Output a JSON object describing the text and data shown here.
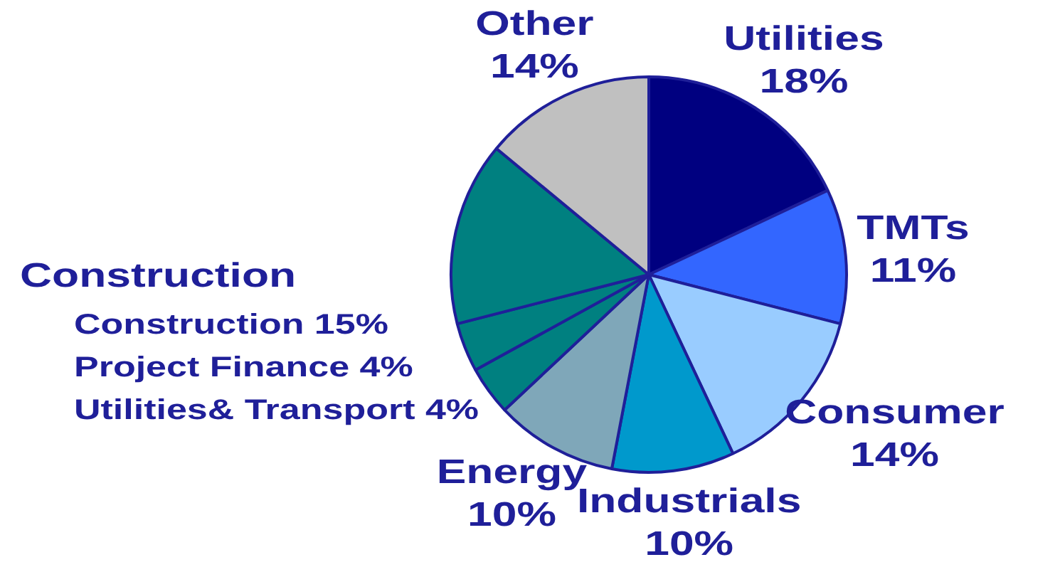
{
  "chart_data": {
    "type": "pie",
    "categories": [
      "Utilities",
      "TMTs",
      "Consumer",
      "Industrials",
      "Energy",
      "Utilities& Transport 4%",
      "Project Finance 4%",
      "Construction 15%",
      "Other"
    ],
    "values": [
      18,
      11,
      14,
      10,
      10,
      4,
      4,
      15,
      14
    ],
    "colors": [
      "#000080",
      "#3366ff",
      "#99ccff",
      "#0099cc",
      "#7fa7b9",
      "#008080",
      "#008080",
      "#008080",
      "#c0c0c0"
    ],
    "value_labels": [
      "18%",
      "11%",
      "14%",
      "10%",
      "10%",
      null,
      null,
      null,
      "14%"
    ],
    "annotations": [
      "Construction"
    ],
    "legend": false
  }
}
